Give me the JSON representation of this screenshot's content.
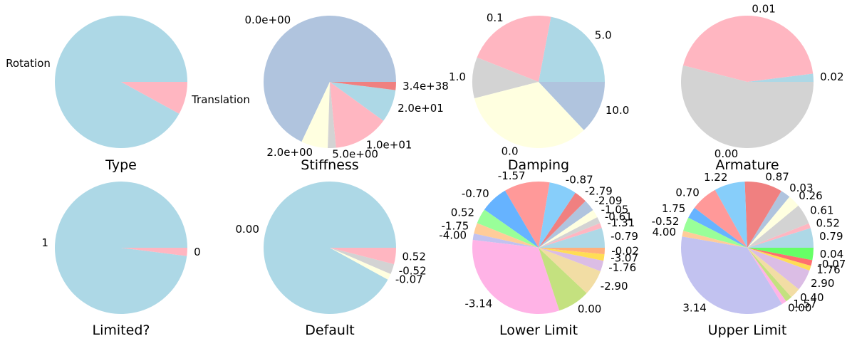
{
  "chart_data": [
    {
      "type": "pie",
      "title": "Type",
      "slices": [
        {
          "label": "Rotation",
          "value": 92,
          "color": "#add8e6"
        },
        {
          "label": "Translation",
          "value": 8,
          "color": "#ffb6c1"
        }
      ]
    },
    {
      "type": "pie",
      "title": "Stiffness",
      "slices": [
        {
          "label": "0.0e+00",
          "value": 68,
          "color": "#b0c4de"
        },
        {
          "label": "2.0e+00",
          "value": 6.5,
          "color": "#ffffe0"
        },
        {
          "label": "5.0e+00",
          "value": 2,
          "color": "#d3d3d3"
        },
        {
          "label": "1.0e+01",
          "value": 13.5,
          "color": "#ffb6c1"
        },
        {
          "label": "2.0e+01",
          "value": 8,
          "color": "#add8e6"
        },
        {
          "label": "3.4e+38",
          "value": 2,
          "color": "#f08080"
        }
      ]
    },
    {
      "type": "pie",
      "title": "Damping",
      "slices": [
        {
          "label": "5.0",
          "value": 22,
          "color": "#add8e6"
        },
        {
          "label": "0.1",
          "value": 22,
          "color": "#ffb6c1"
        },
        {
          "label": "1.0",
          "value": 10,
          "color": "#d3d3d3"
        },
        {
          "label": "0.0",
          "value": 33,
          "color": "#ffffe0"
        },
        {
          "label": "10.0",
          "value": 13,
          "color": "#b0c4de"
        }
      ]
    },
    {
      "type": "pie",
      "title": "Armature",
      "slices": [
        {
          "label": "0.02",
          "value": 2,
          "color": "#add8e6"
        },
        {
          "label": "0.01",
          "value": 44,
          "color": "#ffb6c1"
        },
        {
          "label": "0.00",
          "value": 54,
          "color": "#d3d3d3"
        }
      ]
    },
    {
      "type": "pie",
      "title": "Limited?",
      "slices": [
        {
          "label": "1",
          "value": 98,
          "color": "#add8e6"
        },
        {
          "label": "0",
          "value": 2,
          "color": "#ffb6c1"
        }
      ]
    },
    {
      "type": "pie",
      "title": "Default",
      "slices": [
        {
          "label": "0.00",
          "value": 92,
          "color": "#add8e6"
        },
        {
          "label": "-0.07",
          "value": 1.5,
          "color": "#ffffe0"
        },
        {
          "label": "-0.52",
          "value": 2.5,
          "color": "#d3d3d3"
        },
        {
          "label": "0.52",
          "value": 4,
          "color": "#ffb6c1"
        }
      ]
    },
    {
      "type": "pie",
      "title": "Lower Limit",
      "slices": [
        {
          "label": "-0.79",
          "value": 4.6,
          "color": "#add8e6"
        },
        {
          "label": "-1.31",
          "value": 1.2,
          "color": "#ffb6c1"
        },
        {
          "label": "-0.61",
          "value": 1.5,
          "color": "#d3d3d3"
        },
        {
          "label": "-1.05",
          "value": 1.9,
          "color": "#ffffe0"
        },
        {
          "label": "-2.09",
          "value": 2.7,
          "color": "#b0c4de"
        },
        {
          "label": "-2.79",
          "value": 3,
          "color": "#f08080"
        },
        {
          "label": "-0.87",
          "value": 6.4,
          "color": "#87cefa"
        },
        {
          "label": "-1.57",
          "value": 10.6,
          "color": "#ff9999"
        },
        {
          "label": "-0.70",
          "value": 6.5,
          "color": "#66b3ff"
        },
        {
          "label": "0.52",
          "value": 3.5,
          "color": "#99ff99"
        },
        {
          "label": "-1.75",
          "value": 2.5,
          "color": "#ffcc99"
        },
        {
          "label": "-4.00",
          "value": 1.5,
          "color": "#c2c2f0"
        },
        {
          "label": "-3.14",
          "value": 30.5,
          "color": "#ffb3e6"
        },
        {
          "label": "0.00",
          "value": 7.5,
          "color": "#c4e17f"
        },
        {
          "label": "-2.90",
          "value": 6,
          "color": "#f2dda4"
        },
        {
          "label": "-1.76",
          "value": 2.5,
          "color": "#dbbde5"
        },
        {
          "label": "-3.07",
          "value": 1.5,
          "color": "#ffdd55"
        },
        {
          "label": "-0.02",
          "value": 1.5,
          "color": "#ffb07c"
        }
      ]
    },
    {
      "type": "pie",
      "title": "Upper Limit",
      "slices": [
        {
          "label": "0.79",
          "value": 4.8,
          "color": "#add8e6"
        },
        {
          "label": "0.52",
          "value": 1.2,
          "color": "#ffb6c1"
        },
        {
          "label": "0.61",
          "value": 5,
          "color": "#d3d3d3"
        },
        {
          "label": "0.26",
          "value": 3,
          "color": "#ffffe0"
        },
        {
          "label": "0.03",
          "value": 2.4,
          "color": "#b0c4de"
        },
        {
          "label": "0.87",
          "value": 9.2,
          "color": "#f08080"
        },
        {
          "label": "1.22",
          "value": 7.5,
          "color": "#87cefa"
        },
        {
          "label": "0.70",
          "value": 6.6,
          "color": "#ff9999"
        },
        {
          "label": "1.75",
          "value": 2.8,
          "color": "#66b3ff"
        },
        {
          "label": "-0.52",
          "value": 3.4,
          "color": "#99ff99"
        },
        {
          "label": "4.00",
          "value": 1.4,
          "color": "#ffcc99"
        },
        {
          "label": "3.14",
          "value": 36.5,
          "color": "#c2c2f0"
        },
        {
          "label": "0.00",
          "value": 1.2,
          "color": "#ffb3e6"
        },
        {
          "label": "1.57",
          "value": 1.6,
          "color": "#c4e17f"
        },
        {
          "label": "0.40",
          "value": 2.6,
          "color": "#f2dda4"
        },
        {
          "label": "2.90",
          "value": 5.2,
          "color": "#dbbde5"
        },
        {
          "label": "1.76",
          "value": 1.2,
          "color": "#ffdd55"
        },
        {
          "label": "-0.07",
          "value": 1.4,
          "color": "#ff6f6f"
        },
        {
          "label": "0.04",
          "value": 3,
          "color": "#66ff66"
        }
      ]
    }
  ]
}
